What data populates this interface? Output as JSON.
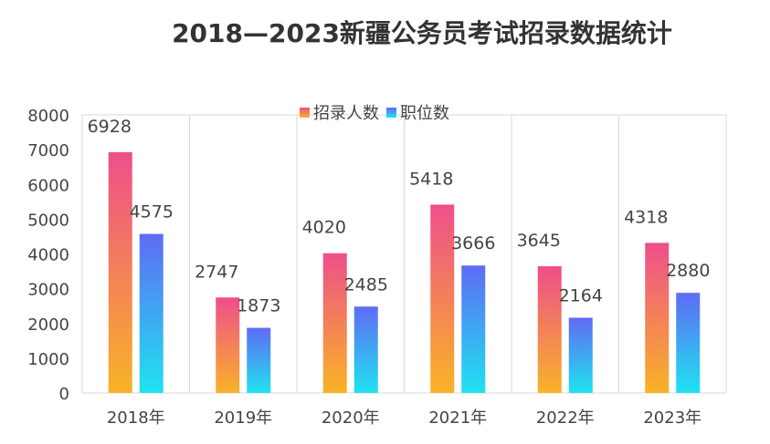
{
  "chart_data": {
    "type": "bar",
    "title": "2018—2023新疆公务员考试招录数据统计",
    "categories": [
      "2018年",
      "2019年",
      "2020年",
      "2021年",
      "2022年",
      "2023年"
    ],
    "series": [
      {
        "name": "招录人数",
        "values": [
          6928,
          2747,
          4020,
          5418,
          3645,
          4318
        ],
        "colors": [
          "#ee4f8b",
          "#f8b327"
        ]
      },
      {
        "name": "职位数",
        "values": [
          4575,
          1873,
          2485,
          3666,
          2164,
          2880
        ],
        "colors": [
          "#5f6bf4",
          "#1fe3f0"
        ]
      }
    ],
    "ylim": [
      0,
      8000
    ],
    "yticks": [
      0,
      1000,
      2000,
      3000,
      4000,
      5000,
      6000,
      7000,
      8000
    ],
    "grid": "vertical category separators",
    "legend": "top-center",
    "data_labels": true
  }
}
